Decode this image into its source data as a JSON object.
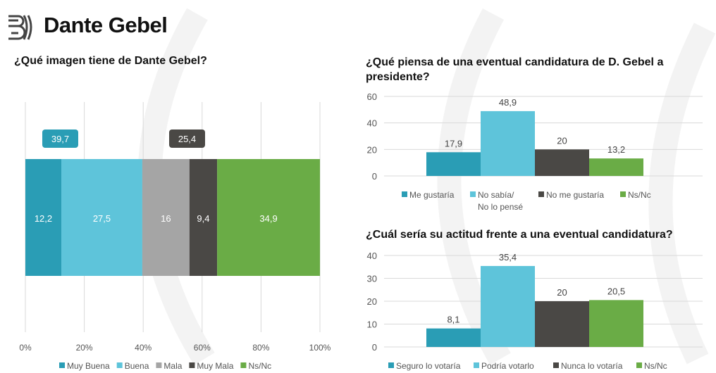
{
  "header": {
    "title": "Dante Gebel",
    "logo_text": "B"
  },
  "colors": {
    "muy_buena": "#2a9db5",
    "buena": "#5ec4da",
    "mala": "#a5a5a5",
    "muy_mala": "#4a4845",
    "nsnc": "#6aac46",
    "grid": "#d9d9d9"
  },
  "chart_data": [
    {
      "type": "bar",
      "orientation": "horizontal-stacked",
      "title": "¿Qué imagen tiene de Dante Gebel?",
      "categories": [
        "Muy Buena",
        "Buena",
        "Mala",
        "Muy Mala",
        "Ns/Nc"
      ],
      "values": [
        12.2,
        27.5,
        16,
        9.4,
        34.9
      ],
      "value_labels": [
        "12,2",
        "27,5",
        "16",
        "9,4",
        "34,9"
      ],
      "xlim": [
        0,
        100
      ],
      "xticks": [
        "0%",
        "20%",
        "40%",
        "60%",
        "80%",
        "100%"
      ],
      "annotations": [
        {
          "label": "39,7",
          "group": "positive"
        },
        {
          "label": "25,4",
          "group": "negative"
        }
      ],
      "legend": "bottom",
      "grid": true
    },
    {
      "type": "bar",
      "title": "¿Qué piensa de una eventual candidatura de D. Gebel a presidente?",
      "categories": [
        "Me gustaría",
        "No sabía/ No lo pensé",
        "No me gustaría",
        "Ns/Nc"
      ],
      "values": [
        17.9,
        48.9,
        20,
        13.2
      ],
      "value_labels": [
        "17,9",
        "48,9",
        "20",
        "13,2"
      ],
      "ylim": [
        0,
        60
      ],
      "yticks": [
        "0",
        "20",
        "40",
        "60"
      ],
      "legend": "bottom",
      "grid": true
    },
    {
      "type": "bar",
      "title": "¿Cuál sería su actitud frente a una eventual candidatura?",
      "categories": [
        "Seguro lo votaría",
        "Podría votarlo",
        "Nunca lo votaría",
        "Ns/Nc"
      ],
      "values": [
        8.1,
        35.4,
        20,
        20.5
      ],
      "value_labels": [
        "8,1",
        "35,4",
        "20",
        "20,5"
      ],
      "ylim": [
        0,
        40
      ],
      "yticks": [
        "0",
        "10",
        "20",
        "30",
        "40"
      ],
      "legend": "bottom",
      "grid": true
    }
  ]
}
